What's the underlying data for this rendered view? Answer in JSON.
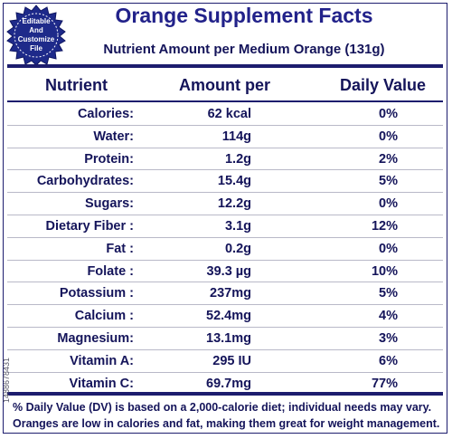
{
  "badge": {
    "line1": "Editable",
    "line2": "And",
    "line3": "Customize",
    "line4": "File"
  },
  "title": "Orange Supplement Facts",
  "subtitle": "Nutrient Amount per Medium Orange (131g)",
  "columns": {
    "nutrient": "Nutrient",
    "amount": "Amount per",
    "daily": "Daily Value"
  },
  "rows": [
    {
      "nutrient": "Calories:",
      "amount": "62 kcal",
      "daily": "0%"
    },
    {
      "nutrient": "Water:",
      "amount": "114g",
      "daily": "0%"
    },
    {
      "nutrient": "Protein:",
      "amount": "1.2g",
      "daily": "2%"
    },
    {
      "nutrient": "Carbohydrates:",
      "amount": "15.4g",
      "daily": "5%"
    },
    {
      "nutrient": "Sugars:",
      "amount": "12.2g",
      "daily": "0%"
    },
    {
      "nutrient": "Dietary Fiber :",
      "amount": "3.1g",
      "daily": "12%"
    },
    {
      "nutrient": "Fat :",
      "amount": "0.2g",
      "daily": "0%"
    },
    {
      "nutrient": "Folate :",
      "amount": "39.3 µg",
      "daily": "10%"
    },
    {
      "nutrient": "Potassium :",
      "amount": "237mg",
      "daily": "5%"
    },
    {
      "nutrient": "Calcium :",
      "amount": "52.4mg",
      "daily": "4%"
    },
    {
      "nutrient": "Magnesium:",
      "amount": "13.1mg",
      "daily": "3%"
    },
    {
      "nutrient": "Vitamin A:",
      "amount": "295 IU",
      "daily": "6%"
    },
    {
      "nutrient": "Vitamin C:",
      "amount": "69.7mg",
      "daily": "77%"
    }
  ],
  "footnotes": [
    "% Daily Value (DV) is based on a 2,000-calorie diet; individual needs may vary.",
    "Oranges are low in calories and fat, making them great for weight management."
  ],
  "side_id": "1488678431",
  "colors": {
    "navy": "#1d1d6e",
    "text": "#14145a",
    "badge": "#1e2a8a"
  }
}
